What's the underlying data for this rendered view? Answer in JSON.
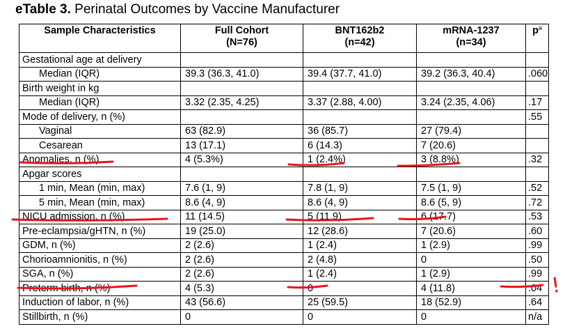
{
  "caption": {
    "bold": "eTable 3.",
    "rest": " Perinatal Outcomes by Vaccine Manufacturer"
  },
  "table": {
    "headers": [
      {
        "line1": "Sample Characteristics",
        "line2": ""
      },
      {
        "line1": "Full Cohort",
        "line2": "(N=76)"
      },
      {
        "line1": "BNT162b2",
        "line2": "(n=42)"
      },
      {
        "line1": "mRNA-1237",
        "line2": "(n=34)"
      },
      {
        "line1": "p",
        "sup": "a"
      }
    ],
    "rows": [
      {
        "label": "Gestational age at delivery",
        "indent": 0,
        "cells": [
          "",
          "",
          "",
          ""
        ]
      },
      {
        "label": "Median (IQR)",
        "indent": 1,
        "cells": [
          "39.3 (36.3, 41.0)",
          "39.4 (37.7, 41.0)",
          "39.2 (36.3, 40.4)",
          ".060"
        ]
      },
      {
        "label": "Birth weight in kg",
        "indent": 0,
        "cells": [
          "",
          "",
          "",
          ""
        ]
      },
      {
        "label": "Median (IQR)",
        "indent": 1,
        "cells": [
          "3.32 (2.35, 4.25)",
          "3.37 (2.88, 4.00)",
          "3.24 (2.35, 4.06)",
          ".17"
        ]
      },
      {
        "label": "Mode of delivery, n (%)",
        "indent": 0,
        "cells": [
          "",
          "",
          "",
          ".55"
        ]
      },
      {
        "label": "Vaginal",
        "indent": 1,
        "cells": [
          "63 (82.9)",
          "36 (85.7)",
          "27 (79.4)",
          ""
        ]
      },
      {
        "label": "Cesarean",
        "indent": 1,
        "cells": [
          "13 (17.1)",
          "6 (14.3)",
          "7 (20.6)",
          ""
        ]
      },
      {
        "label": "Anomalies, n (%)",
        "indent": 0,
        "cells": [
          "4 (5.3%)",
          "1 (2.4%)",
          "3 (8.8%)",
          ".32"
        ]
      },
      {
        "label": "Apgar scores",
        "indent": 0,
        "cells": [
          "",
          "",
          "",
          ""
        ]
      },
      {
        "label": "1 min, Mean (min, max)",
        "indent": 1,
        "cells": [
          "7.6 (1, 9)",
          "7.8 (1, 9)",
          "7.5 (1, 9)",
          ".52"
        ]
      },
      {
        "label": "5 min, Mean (min, max)",
        "indent": 1,
        "cells": [
          "8.6 (4, 9)",
          "8.6 (4, 9)",
          "8.6 (5, 9)",
          ".72"
        ]
      },
      {
        "label": "NICU admission, n (%)",
        "indent": 0,
        "cells": [
          "11 (14.5)",
          "5 (11.9)",
          "6 (17.7)",
          ".53"
        ]
      },
      {
        "label": "Pre-eclampsia/gHTN, n (%)",
        "indent": 0,
        "cells": [
          "19 (25.0)",
          "12 (28.6)",
          "7 (20.6)",
          ".60"
        ]
      },
      {
        "label": "GDM, n (%)",
        "indent": 0,
        "cells": [
          "2 (2.6)",
          "1 (2.4)",
          "1 (2.9)",
          ".99"
        ]
      },
      {
        "label": "Chorioamnionitis, n (%)",
        "indent": 0,
        "cells": [
          "2 (2.6)",
          "2 (4.8)",
          "0",
          ".50"
        ]
      },
      {
        "label": "SGA, n (%)",
        "indent": 0,
        "cells": [
          "2 (2.6)",
          "1 (2.4)",
          "1 (2.9)",
          ".99"
        ]
      },
      {
        "label": "Preterm birth, n (%)",
        "indent": 0,
        "cells": [
          "4 (5.3)",
          "0",
          "4 (11.8)",
          ".04"
        ]
      },
      {
        "label": "Induction of labor, n (%)",
        "indent": 0,
        "cells": [
          "43 (56.6)",
          "25 (59.5)",
          "18 (52.9)",
          ".64"
        ]
      },
      {
        "label": "Stillbirth, n (%)",
        "indent": 0,
        "cells": [
          "0",
          "0",
          "0",
          "n/a"
        ]
      }
    ]
  },
  "annotations": {
    "color": "#e8141b",
    "exclamation": "!"
  }
}
